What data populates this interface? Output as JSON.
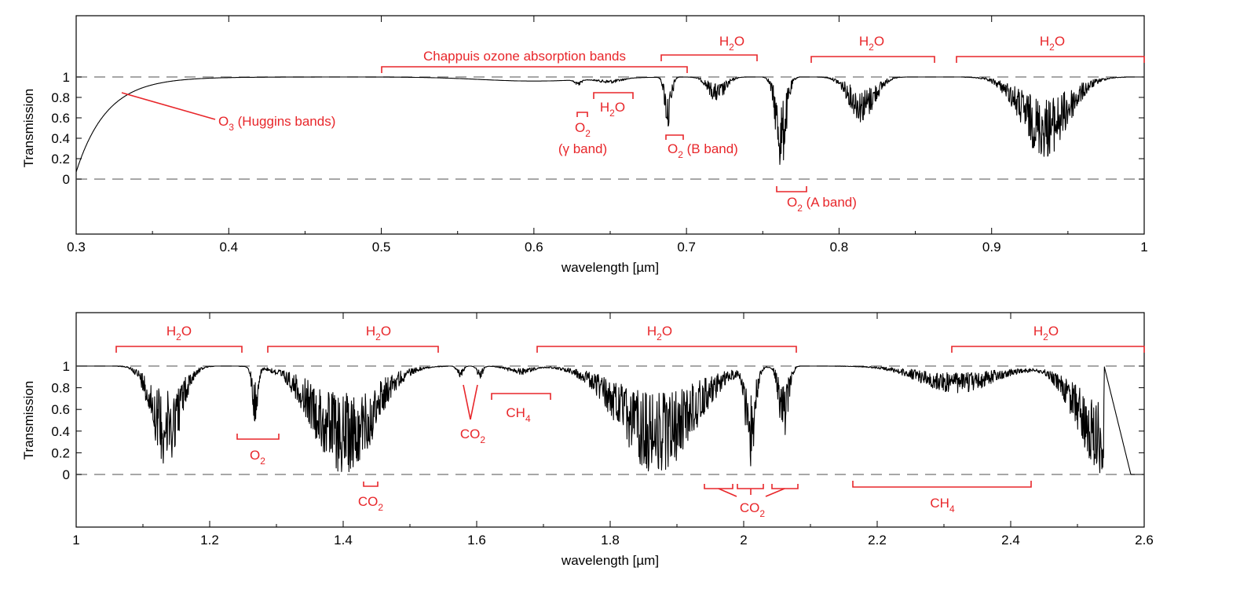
{
  "colors": {
    "annotation": "#e8262a",
    "series": "#000000",
    "reference": "#8a8a8a",
    "frame": "#000000"
  },
  "chart_data": [
    {
      "type": "line",
      "title": "",
      "xlabel": "wavelength [µm]",
      "ylabel": "Transmission",
      "xlim": [
        0.3,
        1.0
      ],
      "ylim": [
        -0.5,
        1.55
      ],
      "xticks": [
        "0.3",
        "0.4",
        "0.5",
        "0.6",
        "0.7",
        "0.8",
        "0.9",
        "1"
      ],
      "yticks": [
        "0",
        "0.2",
        "0.4",
        "0.6",
        "0.8",
        "1"
      ],
      "reference_lines": [
        0,
        1
      ],
      "grid": false,
      "legend": "none",
      "series": [
        {
          "absorption_features": [
            {
              "label": "O3 (Huggins bands)",
              "center": 0.3,
              "width": 0.02,
              "depth": 0.93,
              "shape": "edge"
            },
            {
              "label": "Chappuis ozone absorption bands",
              "center": 0.6,
              "width": 0.05,
              "depth": 0.04,
              "shape": "smooth"
            },
            {
              "label": "O2 (γ band)",
              "center": 0.629,
              "width": 0.003,
              "depth": 0.06,
              "shape": "lines"
            },
            {
              "label": "H2O",
              "center": 0.65,
              "width": 0.01,
              "depth": 0.05,
              "shape": "lines"
            },
            {
              "label": "O2 (B band)",
              "center": 0.688,
              "width": 0.003,
              "depth": 0.55,
              "shape": "lines"
            },
            {
              "label": "H2O",
              "center": 0.72,
              "width": 0.008,
              "depth": 0.25,
              "shape": "lines"
            },
            {
              "label": "O2 (A band)",
              "center": 0.762,
              "width": 0.005,
              "depth": 0.93,
              "shape": "lines"
            },
            {
              "label": "H2O",
              "center": 0.815,
              "width": 0.012,
              "depth": 0.45,
              "shape": "lines"
            },
            {
              "label": "H2O",
              "center": 0.935,
              "width": 0.022,
              "depth": 0.8,
              "shape": "lines"
            }
          ]
        }
      ],
      "annotations": [
        {
          "text": "Chappuis ozone absorption bands",
          "x_range": [
            0.5,
            0.7
          ]
        },
        {
          "text": "H",
          "sub": "2",
          "tail": "O",
          "x_range": [
            0.685,
            0.745
          ]
        },
        {
          "text": "H",
          "sub": "2",
          "tail": "O",
          "x_range": [
            0.78,
            0.862
          ]
        },
        {
          "text": "H",
          "sub": "2",
          "tail": "O",
          "x_range": [
            0.875,
            1.0
          ]
        },
        {
          "text": "O",
          "sub": "3",
          "tail": " (Huggins bands)"
        },
        {
          "text": "O",
          "sub": "2",
          "tail": ""
        },
        {
          "text": "(γ band)"
        },
        {
          "text": "H",
          "sub": "2",
          "tail": "O"
        },
        {
          "text": "O",
          "sub": "2",
          "tail": " (B band)"
        },
        {
          "text": "O",
          "sub": "2",
          "tail": " (A band)"
        }
      ]
    },
    {
      "type": "line",
      "title": "",
      "xlabel": "wavelength [µm]",
      "ylabel": "Transmission",
      "xlim": [
        1.0,
        2.6
      ],
      "ylim": [
        -0.5,
        1.55
      ],
      "xticks": [
        "1",
        "1.2",
        "1.4",
        "1.6",
        "1.8",
        "2",
        "2.2",
        "2.4",
        "2.6"
      ],
      "yticks": [
        "0",
        "0.2",
        "0.4",
        "0.6",
        "0.8",
        "1"
      ],
      "reference_lines": [
        0,
        1
      ],
      "grid": false,
      "legend": "none",
      "series": [
        {
          "absorption_features": [
            {
              "label": "H2O",
              "center": 1.135,
              "width": 0.03,
              "depth": 0.92,
              "shape": "lines"
            },
            {
              "label": "O2",
              "center": 1.268,
              "width": 0.006,
              "depth": 0.55,
              "shape": "lines"
            },
            {
              "label": "H2O",
              "center": 1.4,
              "width": 0.065,
              "depth": 1.0,
              "shape": "lines"
            },
            {
              "label": "CO2",
              "center": 1.44,
              "width": 0.006,
              "depth": 0.3,
              "shape": "lines"
            },
            {
              "label": "CO2",
              "center": 1.575,
              "width": 0.006,
              "depth": 0.12,
              "shape": "lines"
            },
            {
              "label": "CO2",
              "center": 1.605,
              "width": 0.006,
              "depth": 0.12,
              "shape": "lines"
            },
            {
              "label": "CH4",
              "center": 1.665,
              "width": 0.025,
              "depth": 0.08,
              "shape": "lines"
            },
            {
              "label": "H2O",
              "center": 1.87,
              "width": 0.08,
              "depth": 1.0,
              "shape": "lines"
            },
            {
              "label": "CO2",
              "center": 2.01,
              "width": 0.01,
              "depth": 0.95,
              "shape": "lines"
            },
            {
              "label": "CO2",
              "center": 2.06,
              "width": 0.01,
              "depth": 0.7,
              "shape": "lines"
            },
            {
              "label": "CH4",
              "center": 2.32,
              "width": 0.08,
              "depth": 0.25,
              "shape": "lines"
            },
            {
              "label": "H2O",
              "center": 2.54,
              "width": 0.04,
              "depth": 1.0,
              "shape": "cutoff"
            }
          ]
        }
      ],
      "annotations": [
        {
          "text": "H",
          "sub": "2",
          "tail": "O",
          "x_range": [
            1.06,
            1.245
          ]
        },
        {
          "text": "H",
          "sub": "2",
          "tail": "O",
          "x_range": [
            1.285,
            1.54
          ]
        },
        {
          "text": "H",
          "sub": "2",
          "tail": "O",
          "x_range": [
            1.69,
            2.08
          ]
        },
        {
          "text": "H",
          "sub": "2",
          "tail": "O",
          "x_range": [
            2.31,
            2.6
          ]
        },
        {
          "text": "O",
          "sub": "2",
          "tail": ""
        },
        {
          "text": "CO",
          "sub": "2",
          "tail": ""
        },
        {
          "text": "CO",
          "sub": "2",
          "tail": ""
        },
        {
          "text": "CH",
          "sub": "4",
          "tail": ""
        },
        {
          "text": "CO",
          "sub": "2",
          "tail": ""
        },
        {
          "text": "CH",
          "sub": "4",
          "tail": ""
        }
      ]
    }
  ]
}
